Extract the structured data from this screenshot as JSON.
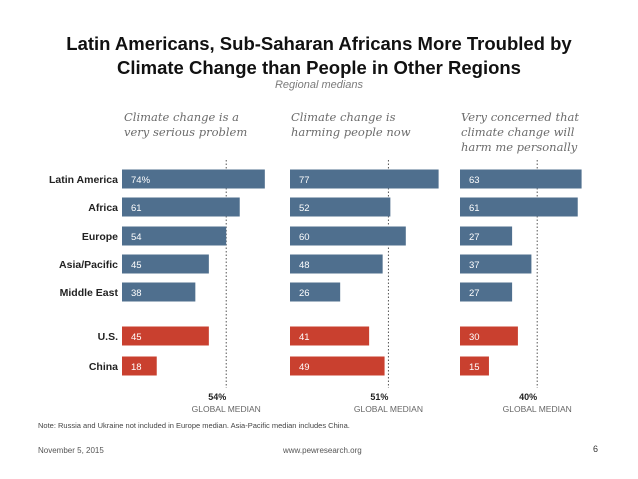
{
  "slide": {
    "title_line1": "Latin Americans, Sub-Saharan Africans More Troubled by",
    "title_line2": "Climate Change than People in Other Regions",
    "subtitle": "Regional medians",
    "note": "Note: Russia and Ukraine not included in Europe median. Asia-Pacific median includes China.",
    "date": "November 5, 2015",
    "url": "www.pewresearch.org",
    "page": "6"
  },
  "colors": {
    "region": "#4f6f8e",
    "country": "#c9402f"
  },
  "chart_data": {
    "type": "bar",
    "orientation": "horizontal",
    "title": "Latin Americans, Sub-Saharan Africans More Troubled by Climate Change than People in Other Regions",
    "subtitle": "Regional medians",
    "categories": [
      "Latin America",
      "Africa",
      "Europe",
      "Asia/Pacific",
      "Middle East",
      "U.S.",
      "China"
    ],
    "category_groups": [
      "region",
      "region",
      "region",
      "region",
      "region",
      "country",
      "country"
    ],
    "series": [
      {
        "name": "Climate change is a very serious problem",
        "values": [
          74,
          61,
          54,
          45,
          38,
          45,
          18
        ],
        "global_median": 54,
        "first_label_suffix": "%"
      },
      {
        "name": "Climate change is harming people now",
        "values": [
          77,
          52,
          60,
          48,
          26,
          41,
          49
        ],
        "global_median": 51,
        "first_label_suffix": ""
      },
      {
        "name": "Very concerned that climate change will harm me personally",
        "values": [
          63,
          61,
          27,
          37,
          27,
          30,
          15
        ],
        "global_median": 40,
        "first_label_suffix": ""
      }
    ],
    "panel_titles": [
      "Climate change is a\nvery serious problem",
      "Climate change is\nharming people now",
      "Very concerned that\nclimate change will\nharm me personally"
    ],
    "median_labels": [
      "54%",
      "51%",
      "40%"
    ],
    "median_caption": "GLOBAL MEDIAN",
    "xlim": [
      0,
      100
    ]
  }
}
